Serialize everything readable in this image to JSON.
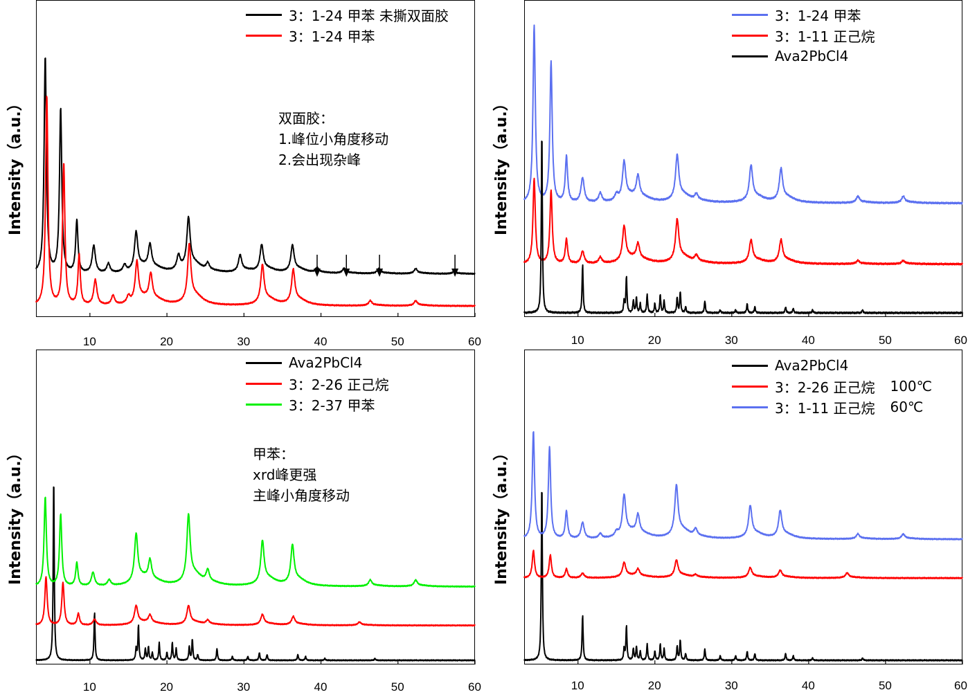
{
  "chart_data": [
    {
      "type": "line",
      "panel": "top-left",
      "ylabel": "Intensity（a.u.）",
      "xlim": [
        3,
        60
      ],
      "xticks": [
        10,
        20,
        30,
        40,
        50,
        60
      ],
      "legend_position": "top-right",
      "series": [
        {
          "name": "3：1-24 甲苯 未撕双面胶",
          "color": "#000000",
          "baseline": 0.17,
          "peaks": [
            [
              4.2,
              0.95
            ],
            [
              6.2,
              0.72
            ],
            [
              8.3,
              0.23
            ],
            [
              10.5,
              0.12
            ],
            [
              12.4,
              0.04
            ],
            [
              14.5,
              0.03
            ],
            [
              16.0,
              0.16
            ],
            [
              17.8,
              0.1
            ],
            [
              21.5,
              0.06
            ],
            [
              22.8,
              0.21
            ],
            [
              25.3,
              0.03
            ],
            [
              29.5,
              0.07
            ],
            [
              32.3,
              0.11
            ],
            [
              36.3,
              0.11
            ],
            [
              39.5,
              0.02
            ],
            [
              43.0,
              0.02
            ],
            [
              47.5,
              0.02
            ],
            [
              52.3,
              0.02
            ],
            [
              57.3,
              0.01
            ]
          ]
        },
        {
          "name": "3：1-24 甲苯",
          "color": "#ff0000",
          "baseline": 0.03,
          "peaks": [
            [
              4.4,
              0.92
            ],
            [
              6.6,
              0.62
            ],
            [
              8.6,
              0.22
            ],
            [
              10.7,
              0.11
            ],
            [
              13.0,
              0.04
            ],
            [
              15.0,
              0.03
            ],
            [
              16.1,
              0.17
            ],
            [
              17.9,
              0.11
            ],
            [
              22.9,
              0.24
            ],
            [
              32.4,
              0.16
            ],
            [
              36.4,
              0.14
            ],
            [
              46.4,
              0.02
            ],
            [
              52.3,
              0.02
            ]
          ]
        }
      ],
      "arrows_x": [
        39.5,
        43.3,
        47.6,
        57.4
      ]
    },
    {
      "type": "line",
      "panel": "top-right",
      "ylabel": "Intensity（a.u.）",
      "xlim": [
        3,
        60
      ],
      "xticks": [
        10,
        20,
        30,
        40,
        50,
        60
      ],
      "legend_position": "top-right",
      "series": [
        {
          "name": "3：1-24 甲苯",
          "color": "#5b70f0",
          "baseline": 0.36,
          "peaks": [
            [
              4.3,
              0.58
            ],
            [
              6.5,
              0.46
            ],
            [
              8.5,
              0.15
            ],
            [
              10.6,
              0.08
            ],
            [
              12.9,
              0.03
            ],
            [
              15.0,
              0.02
            ],
            [
              16.0,
              0.12
            ],
            [
              17.8,
              0.07
            ],
            [
              22.9,
              0.14
            ],
            [
              25.4,
              0.02
            ],
            [
              32.5,
              0.11
            ],
            [
              36.4,
              0.1
            ],
            [
              46.4,
              0.02
            ],
            [
              52.3,
              0.02
            ]
          ]
        },
        {
          "name": "3：1-11 正己烷",
          "color": "#ff0000",
          "baseline": 0.16,
          "peaks": [
            [
              4.3,
              0.28
            ],
            [
              6.5,
              0.24
            ],
            [
              8.5,
              0.08
            ],
            [
              10.6,
              0.04
            ],
            [
              12.9,
              0.02
            ],
            [
              16.0,
              0.11
            ],
            [
              17.8,
              0.05
            ],
            [
              22.9,
              0.13
            ],
            [
              25.4,
              0.02
            ],
            [
              32.5,
              0.07
            ],
            [
              36.4,
              0.07
            ],
            [
              46.4,
              0.01
            ],
            [
              52.3,
              0.01
            ]
          ]
        },
        {
          "name": "Ava2PbCl4",
          "color": "#000000",
          "baseline": 0.0,
          "peaks": [
            [
              5.3,
              0.6
            ],
            [
              10.6,
              0.16
            ],
            [
              16.0,
              0.04
            ],
            [
              16.3,
              0.12
            ],
            [
              17.2,
              0.04
            ],
            [
              17.6,
              0.05
            ],
            [
              18.1,
              0.03
            ],
            [
              19.0,
              0.06
            ],
            [
              20.0,
              0.03
            ],
            [
              20.7,
              0.06
            ],
            [
              21.2,
              0.04
            ],
            [
              22.9,
              0.05
            ],
            [
              23.3,
              0.07
            ],
            [
              24.0,
              0.02
            ],
            [
              26.5,
              0.04
            ],
            [
              28.5,
              0.01
            ],
            [
              30.5,
              0.01
            ],
            [
              32.0,
              0.03
            ],
            [
              33.0,
              0.02
            ],
            [
              37.0,
              0.02
            ],
            [
              38.0,
              0.015
            ],
            [
              40.5,
              0.01
            ],
            [
              47.0,
              0.01
            ]
          ]
        }
      ]
    },
    {
      "type": "line",
      "panel": "bottom-left",
      "ylabel": "Intensity（a.u.）",
      "xlim": [
        3,
        60
      ],
      "xticks": [
        10,
        20,
        30,
        40,
        50,
        60
      ],
      "legend_position": "top-right",
      "series": [
        {
          "name": "Ava2PbCl4",
          "color": "#000000",
          "baseline": 0.0,
          "peaks": [
            [
              5.3,
              0.95
            ],
            [
              10.6,
              0.25
            ],
            [
              16.0,
              0.06
            ],
            [
              16.3,
              0.18
            ],
            [
              17.2,
              0.06
            ],
            [
              17.6,
              0.07
            ],
            [
              18.1,
              0.04
            ],
            [
              19.0,
              0.09
            ],
            [
              20.0,
              0.04
            ],
            [
              20.7,
              0.09
            ],
            [
              21.2,
              0.06
            ],
            [
              22.9,
              0.07
            ],
            [
              23.3,
              0.11
            ],
            [
              24.0,
              0.03
            ],
            [
              26.5,
              0.06
            ],
            [
              28.5,
              0.02
            ],
            [
              30.5,
              0.02
            ],
            [
              32.0,
              0.04
            ],
            [
              33.0,
              0.03
            ],
            [
              37.0,
              0.03
            ],
            [
              38.0,
              0.02
            ],
            [
              40.5,
              0.01
            ],
            [
              47.0,
              0.01
            ]
          ]
        },
        {
          "name": "3：2-26 正己烷",
          "color": "#ff0000",
          "baseline": 0.18,
          "peaks": [
            [
              4.3,
              0.25
            ],
            [
              6.5,
              0.22
            ],
            [
              8.5,
              0.06
            ],
            [
              10.6,
              0.03
            ],
            [
              16.0,
              0.09
            ],
            [
              17.8,
              0.04
            ],
            [
              22.8,
              0.09
            ],
            [
              25.3,
              0.02
            ],
            [
              32.4,
              0.05
            ],
            [
              36.4,
              0.04
            ],
            [
              45.0,
              0.015
            ]
          ]
        },
        {
          "name": "3：2-37 甲苯",
          "color": "#00f000",
          "baseline": 0.38,
          "peaks": [
            [
              4.2,
              0.46
            ],
            [
              6.2,
              0.37
            ],
            [
              8.3,
              0.12
            ],
            [
              10.4,
              0.07
            ],
            [
              12.5,
              0.03
            ],
            [
              16.0,
              0.24
            ],
            [
              17.8,
              0.1
            ],
            [
              22.8,
              0.33
            ],
            [
              25.3,
              0.06
            ],
            [
              32.4,
              0.21
            ],
            [
              36.3,
              0.19
            ],
            [
              46.4,
              0.03
            ],
            [
              52.3,
              0.03
            ]
          ]
        }
      ]
    },
    {
      "type": "line",
      "panel": "bottom-right",
      "ylabel": "Intensity（a.u.）",
      "xlim": [
        3,
        60
      ],
      "xticks": [
        10,
        20,
        30,
        40,
        50,
        60
      ],
      "legend_position": "top-right",
      "series": [
        {
          "name": "Ava2PbCl4",
          "color": "#000000",
          "baseline": 0.0,
          "extra": "",
          "peaks": [
            [
              5.3,
              0.78
            ],
            [
              10.6,
              0.2
            ],
            [
              16.0,
              0.05
            ],
            [
              16.3,
              0.15
            ],
            [
              17.2,
              0.05
            ],
            [
              17.6,
              0.06
            ],
            [
              18.1,
              0.04
            ],
            [
              19.0,
              0.07
            ],
            [
              20.0,
              0.04
            ],
            [
              20.7,
              0.07
            ],
            [
              21.2,
              0.05
            ],
            [
              22.9,
              0.06
            ],
            [
              23.3,
              0.09
            ],
            [
              24.0,
              0.03
            ],
            [
              26.5,
              0.05
            ],
            [
              28.5,
              0.02
            ],
            [
              30.5,
              0.02
            ],
            [
              32.0,
              0.04
            ],
            [
              33.0,
              0.03
            ],
            [
              37.0,
              0.03
            ],
            [
              38.0,
              0.02
            ],
            [
              40.5,
              0.01
            ],
            [
              47.0,
              0.01
            ]
          ]
        },
        {
          "name": "3：2-26 正己烷",
          "color": "#ff0000",
          "baseline": 0.36,
          "extra": "100℃",
          "peaks": [
            [
              4.2,
              0.12
            ],
            [
              6.4,
              0.1
            ],
            [
              8.5,
              0.04
            ],
            [
              10.6,
              0.02
            ],
            [
              16.0,
              0.06
            ],
            [
              17.8,
              0.03
            ],
            [
              22.8,
              0.07
            ],
            [
              25.3,
              0.01
            ],
            [
              32.4,
              0.04
            ],
            [
              36.3,
              0.03
            ],
            [
              45.0,
              0.02
            ]
          ]
        },
        {
          "name": "3：1-11 正己烷",
          "color": "#5b70f0",
          "baseline": 0.53,
          "extra": "60℃",
          "peaks": [
            [
              4.2,
              0.47
            ],
            [
              6.3,
              0.4
            ],
            [
              8.5,
              0.12
            ],
            [
              10.6,
              0.07
            ],
            [
              12.9,
              0.02
            ],
            [
              15.0,
              0.02
            ],
            [
              16.0,
              0.17
            ],
            [
              17.8,
              0.08
            ],
            [
              22.8,
              0.21
            ],
            [
              25.3,
              0.03
            ],
            [
              32.4,
              0.13
            ],
            [
              36.3,
              0.11
            ],
            [
              46.4,
              0.02
            ],
            [
              52.3,
              0.02
            ]
          ]
        }
      ]
    }
  ],
  "notes": [
    {
      "panel": "top-left",
      "lines": [
        "双面胶：",
        "1.峰位小角度移动",
        "2.会出现杂峰"
      ]
    },
    {
      "panel": "bottom-left",
      "lines": [
        "甲苯：",
        "xrd峰更强",
        "主峰小角度移动"
      ]
    }
  ]
}
